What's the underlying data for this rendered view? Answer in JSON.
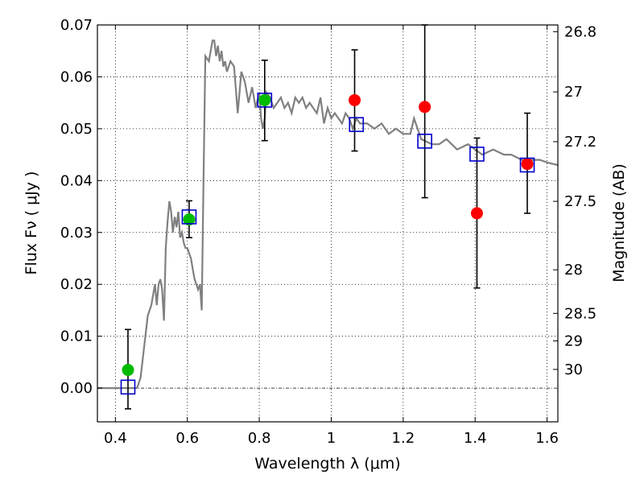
{
  "chart_data": {
    "type": "scatter",
    "xlabel": "Wavelength  λ (μm)",
    "ylabel": "Flux  Fν  ( μJy )",
    "ylabel_right": "Magnitude (AB)",
    "xlim": [
      0.35,
      1.63
    ],
    "ylim": [
      -0.0065,
      0.07
    ],
    "grid": true,
    "x_ticks": [
      0.4,
      0.6,
      0.8,
      1.0,
      1.2,
      1.4,
      1.6
    ],
    "x_tick_labels": [
      "0.4",
      "0.6",
      "0.8",
      "1",
      "1.2",
      "1.4",
      "1.6"
    ],
    "y_ticks": [
      0.0,
      0.01,
      0.02,
      0.03,
      0.04,
      0.05,
      0.06,
      0.07
    ],
    "y_tick_labels": [
      "0.00",
      "0.01",
      "0.02",
      "0.03",
      "0.04",
      "0.05",
      "0.06",
      "0.07"
    ],
    "right_ticks": [
      {
        "label": "26.8",
        "flux": 0.0687
      },
      {
        "label": "27",
        "flux": 0.0571
      },
      {
        "label": "27.2",
        "flux": 0.0475
      },
      {
        "label": "27.5",
        "flux": 0.036
      },
      {
        "label": "28",
        "flux": 0.0228
      },
      {
        "label": "28.5",
        "flux": 0.0144
      },
      {
        "label": "29",
        "flux": 0.0091
      },
      {
        "label": "30",
        "flux": 0.0036
      }
    ],
    "colors": {
      "model": "#808080",
      "green": "#00bb00",
      "red": "#ff0000",
      "square": "#0000cc",
      "errorbar": "#000000",
      "zero_line": "#000000"
    },
    "series": [
      {
        "marker": "model-spectrum-line",
        "x": [
          0.35,
          0.46,
          0.47,
          0.48,
          0.49,
          0.5,
          0.51,
          0.515,
          0.52,
          0.525,
          0.53,
          0.535,
          0.54,
          0.545,
          0.55,
          0.555,
          0.56,
          0.565,
          0.57,
          0.575,
          0.58,
          0.585,
          0.59,
          0.595,
          0.6,
          0.605,
          0.61,
          0.615,
          0.62,
          0.625,
          0.63,
          0.635,
          0.64,
          0.645,
          0.65,
          0.66,
          0.67,
          0.675,
          0.68,
          0.685,
          0.69,
          0.695,
          0.7,
          0.705,
          0.71,
          0.72,
          0.73,
          0.74,
          0.75,
          0.755,
          0.76,
          0.77,
          0.78,
          0.79,
          0.8,
          0.805,
          0.81,
          0.815,
          0.82,
          0.83,
          0.84,
          0.85,
          0.86,
          0.87,
          0.88,
          0.89,
          0.9,
          0.91,
          0.92,
          0.93,
          0.94,
          0.95,
          0.96,
          0.97,
          0.98,
          0.99,
          1.0,
          1.01,
          1.02,
          1.03,
          1.04,
          1.05,
          1.06,
          1.07,
          1.08,
          1.1,
          1.12,
          1.14,
          1.16,
          1.18,
          1.2,
          1.22,
          1.23,
          1.25,
          1.28,
          1.3,
          1.32,
          1.35,
          1.38,
          1.4,
          1.42,
          1.45,
          1.48,
          1.5,
          1.53,
          1.55,
          1.58,
          1.6,
          1.63
        ],
        "y": [
          0.0,
          0.0,
          0.002,
          0.008,
          0.014,
          0.016,
          0.02,
          0.016,
          0.02,
          0.021,
          0.019,
          0.013,
          0.027,
          0.032,
          0.036,
          0.034,
          0.03,
          0.033,
          0.031,
          0.034,
          0.029,
          0.03,
          0.028,
          0.027,
          0.027,
          0.026,
          0.025,
          0.023,
          0.021,
          0.02,
          0.019,
          0.02,
          0.015,
          0.04,
          0.064,
          0.063,
          0.067,
          0.067,
          0.064,
          0.066,
          0.063,
          0.065,
          0.062,
          0.063,
          0.061,
          0.063,
          0.062,
          0.053,
          0.061,
          0.06,
          0.059,
          0.055,
          0.058,
          0.054,
          0.057,
          0.052,
          0.05,
          0.052,
          0.057,
          0.056,
          0.054,
          0.055,
          0.056,
          0.054,
          0.055,
          0.053,
          0.056,
          0.055,
          0.056,
          0.054,
          0.055,
          0.054,
          0.053,
          0.056,
          0.051,
          0.054,
          0.052,
          0.053,
          0.052,
          0.051,
          0.053,
          0.052,
          0.05,
          0.052,
          0.051,
          0.051,
          0.05,
          0.051,
          0.049,
          0.05,
          0.049,
          0.049,
          0.052,
          0.048,
          0.047,
          0.047,
          0.048,
          0.046,
          0.047,
          0.046,
          0.045,
          0.046,
          0.045,
          0.045,
          0.044,
          0.044,
          0.044,
          0.0435,
          0.043
        ]
      },
      {
        "marker": "green-circle",
        "x": [
          0.435,
          0.605,
          0.815
        ],
        "y": [
          0.0035,
          0.0325,
          0.0555
        ]
      },
      {
        "marker": "red-circle",
        "x": [
          1.065,
          1.26,
          1.405,
          1.545
        ],
        "y": [
          0.0555,
          0.0542,
          0.0337,
          0.0432
        ]
      },
      {
        "marker": "blue-square",
        "x": [
          0.435,
          0.605,
          0.815,
          1.07,
          1.26,
          1.405,
          1.545
        ],
        "y": [
          0.0002,
          0.033,
          0.0555,
          0.0508,
          0.0476,
          0.0451,
          0.043
        ]
      },
      {
        "marker": "error-bar",
        "x": [
          0.435,
          0.605,
          0.815,
          1.065,
          1.26,
          1.405,
          1.545
        ],
        "ylow": [
          -0.004,
          0.029,
          0.0477,
          0.0457,
          0.0367,
          0.0193,
          0.0337
        ],
        "yhigh": [
          0.0113,
          0.0361,
          0.0632,
          0.0652,
          0.07,
          0.0482,
          0.053
        ]
      }
    ]
  }
}
